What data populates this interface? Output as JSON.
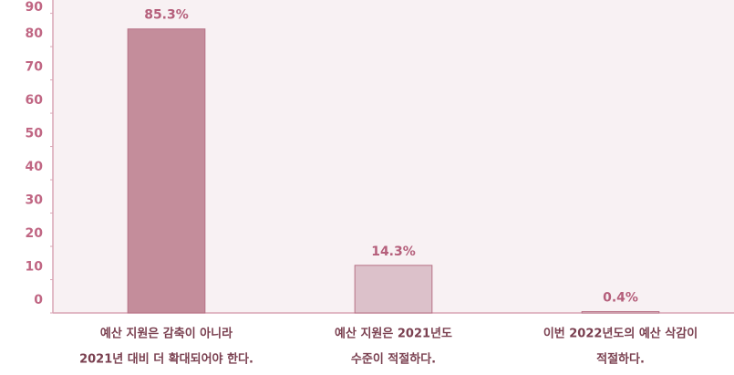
{
  "chart_data": {
    "type": "bar",
    "categories": [
      [
        "예산 지원은 감축이 아니라",
        "2021년 대비 더 확대되어야 한다."
      ],
      [
        "예산 지원은 2021년도",
        "수준이 적절하다."
      ],
      [
        "이번 2022년도의 예산 삭감이",
        "적절하다."
      ]
    ],
    "values": [
      85.3,
      14.3,
      0.4
    ],
    "value_labels": [
      "85.3%",
      "14.3%",
      "0.4%"
    ],
    "colors": [
      "#c48d9b",
      "#dcc1ca",
      "#e8d3da"
    ],
    "ylim": [
      0,
      94
    ],
    "yticks": [
      0,
      10,
      20,
      30,
      40,
      50,
      60,
      70,
      80,
      90
    ],
    "grid": false
  }
}
